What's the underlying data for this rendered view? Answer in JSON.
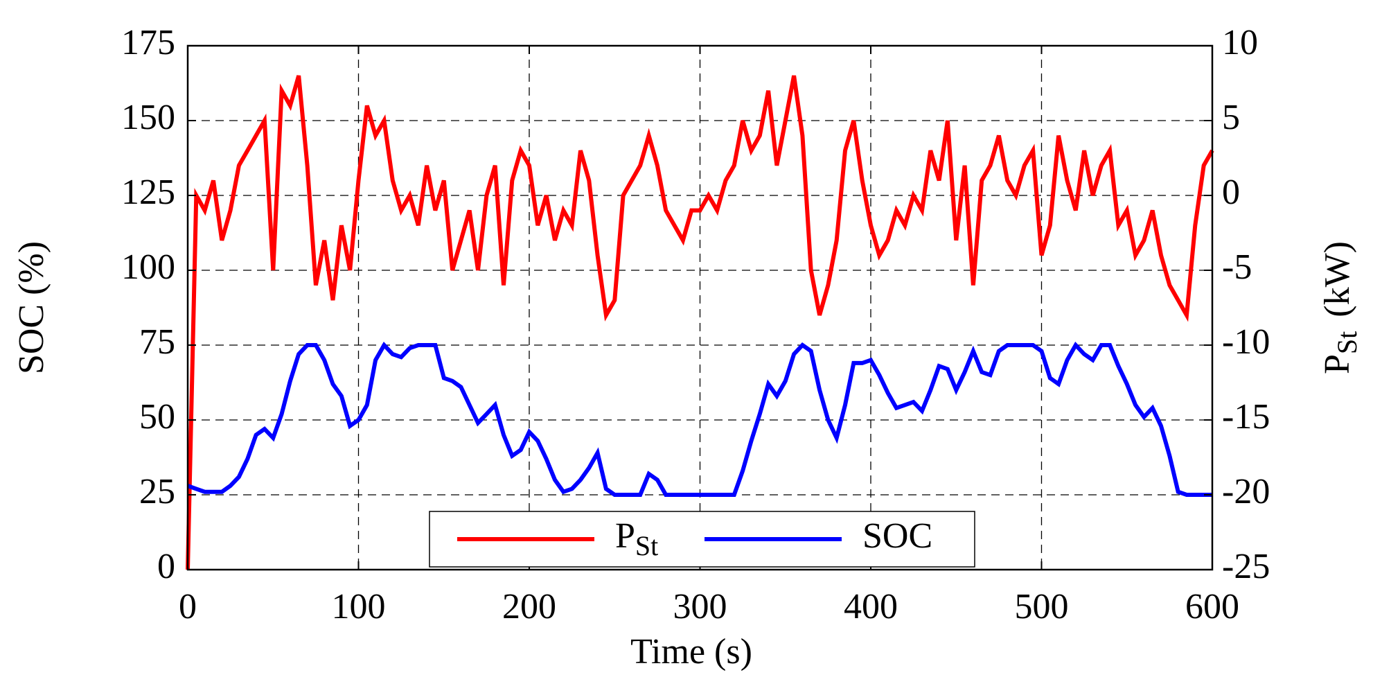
{
  "chart_data": {
    "type": "line",
    "xlabel": "Time  (s)",
    "ylabel": "SOC (%)",
    "y2label": "P",
    "y2label_sub": "St",
    "y2label_unit": "(kW)",
    "xlim": [
      0,
      600
    ],
    "xticks": [
      0,
      100,
      200,
      300,
      400,
      500,
      600
    ],
    "ylim": [
      0,
      175
    ],
    "yticks": [
      0,
      25,
      50,
      75,
      100,
      125,
      150,
      175
    ],
    "y2lim": [
      -25,
      10
    ],
    "y2ticks": [
      -25,
      -20,
      -15,
      -10,
      -5,
      0,
      5,
      10
    ],
    "grid": true,
    "legend": "bottom",
    "x": [
      0,
      5,
      10,
      15,
      20,
      25,
      30,
      35,
      40,
      45,
      50,
      55,
      60,
      65,
      70,
      75,
      80,
      85,
      90,
      95,
      100,
      105,
      110,
      115,
      120,
      125,
      130,
      135,
      140,
      145,
      150,
      155,
      160,
      165,
      170,
      175,
      180,
      185,
      190,
      195,
      200,
      205,
      210,
      215,
      220,
      225,
      230,
      235,
      240,
      245,
      250,
      255,
      260,
      265,
      270,
      275,
      280,
      285,
      290,
      295,
      300,
      305,
      310,
      315,
      320,
      325,
      330,
      335,
      340,
      345,
      350,
      355,
      360,
      365,
      370,
      375,
      380,
      385,
      390,
      395,
      400,
      405,
      410,
      415,
      420,
      425,
      430,
      435,
      440,
      445,
      450,
      455,
      460,
      465,
      470,
      475,
      480,
      485,
      490,
      495,
      500,
      505,
      510,
      515,
      520,
      525,
      530,
      535,
      540,
      545,
      550,
      555,
      560,
      565,
      570,
      575,
      580,
      585,
      590,
      595,
      600
    ],
    "series": [
      {
        "name": "P",
        "name_sub": "St",
        "color": "#ff0000",
        "axis": "y2",
        "values": [
          -25,
          0,
          -1,
          1,
          -3,
          -1,
          2,
          3,
          4,
          5,
          -5,
          7,
          6,
          8,
          2,
          -6,
          -3,
          -7,
          -2,
          -5,
          1,
          6,
          4,
          5,
          1,
          -1,
          0,
          -2,
          2,
          -1,
          1,
          -5,
          -3,
          -1,
          -5,
          0,
          2,
          -6,
          1,
          3,
          2,
          -2,
          0,
          -3,
          -1,
          -2,
          3,
          1,
          -4,
          -8,
          -7,
          0,
          1,
          2,
          4,
          2,
          -1,
          -2,
          -3,
          -1,
          -1,
          0,
          -1,
          1,
          2,
          5,
          3,
          4,
          7,
          2,
          5,
          8,
          4,
          -5,
          -8,
          -6,
          -3,
          3,
          5,
          1,
          -2,
          -4,
          -3,
          -1,
          -2,
          0,
          -1,
          3,
          1,
          5,
          -3,
          2,
          -6,
          1,
          2,
          4,
          1,
          0,
          2,
          3,
          -4,
          -2,
          4,
          1,
          -1,
          3,
          0,
          2,
          3,
          -2,
          -1,
          -4,
          -3,
          -1,
          -4,
          -6,
          -7,
          -8,
          -2,
          2,
          3
        ]
      },
      {
        "name": "SOC",
        "color": "#0000ff",
        "values": [
          28,
          27,
          26,
          26,
          26,
          28,
          31,
          37,
          45,
          47,
          44,
          52,
          63,
          72,
          75,
          75,
          70,
          62,
          58,
          48,
          50,
          55,
          70,
          75,
          72,
          71,
          74,
          75,
          75,
          75,
          64,
          63,
          61,
          55,
          49,
          52,
          55,
          45,
          38,
          40,
          46,
          43,
          37,
          30,
          26,
          27,
          30,
          34,
          39,
          27,
          25,
          25,
          25,
          25,
          32,
          30,
          25,
          25,
          25,
          25,
          25,
          25,
          25,
          25,
          25,
          33,
          43,
          52,
          62,
          58,
          63,
          72,
          75,
          73,
          60,
          50,
          44,
          55,
          69,
          69,
          70,
          65,
          59,
          54,
          55,
          56,
          53,
          60,
          68,
          67,
          60,
          66,
          73,
          66,
          65,
          73,
          75,
          75,
          75,
          75,
          73,
          64,
          62,
          70,
          75,
          72,
          70,
          75,
          75,
          68,
          62,
          55,
          51,
          54,
          48,
          38,
          26,
          25,
          25,
          25,
          25
        ]
      }
    ]
  }
}
